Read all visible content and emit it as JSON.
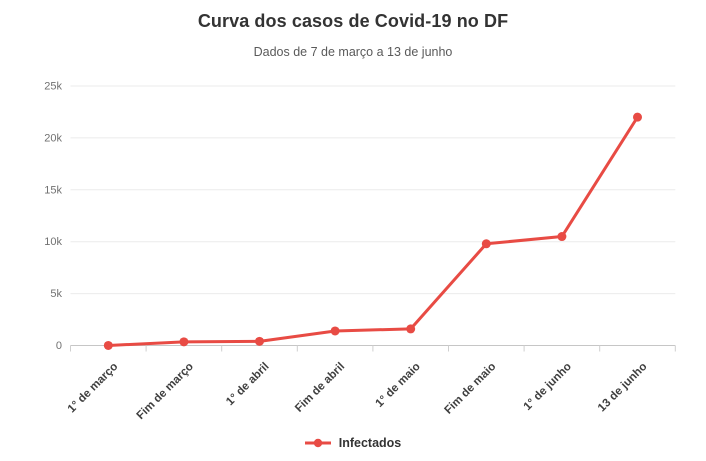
{
  "header": {
    "title": "Curva dos casos de Covid-19 no DF",
    "subtitle": "Dados de 7 de março a 13 de junho"
  },
  "legend": {
    "items": [
      {
        "label": "Infectados",
        "color": "#e84b44"
      }
    ]
  },
  "chart_data": {
    "type": "line",
    "title": "Curva dos casos de Covid-19 no DF",
    "subtitle": "Dados de 7 de março a 13 de junho",
    "categories": [
      "1° de março",
      "Fim de março",
      "1° de abril",
      "Fim de abril",
      "1° de maio",
      "Fim de maio",
      "1° de junho",
      "13 de junho"
    ],
    "series": [
      {
        "name": "Infectados",
        "color": "#e84b44",
        "values": [
          1,
          350,
          400,
          1400,
          1600,
          9800,
          10500,
          22000
        ]
      }
    ],
    "xlabel": "",
    "ylabel": "",
    "ylim": [
      0,
      25000
    ],
    "y_ticks": [
      {
        "value": 0,
        "label": "0"
      },
      {
        "value": 5000,
        "label": "5k"
      },
      {
        "value": 10000,
        "label": "10k"
      },
      {
        "value": 15000,
        "label": "15k"
      },
      {
        "value": 20000,
        "label": "20k"
      },
      {
        "value": 25000,
        "label": "25k"
      }
    ],
    "grid": true,
    "legend_position": "bottom",
    "x_label_rotation": -45
  },
  "colors": {
    "series": "#e84b44",
    "title_text": "#333333",
    "subtitle_text": "#5a5a5a",
    "y_axis_text": "#717171",
    "x_axis_text": "#3f3f3f",
    "gridline": "#ebebeb",
    "axis_line": "#c6c6c6",
    "tick": "#cfcfcf",
    "background": "#ffffff"
  }
}
